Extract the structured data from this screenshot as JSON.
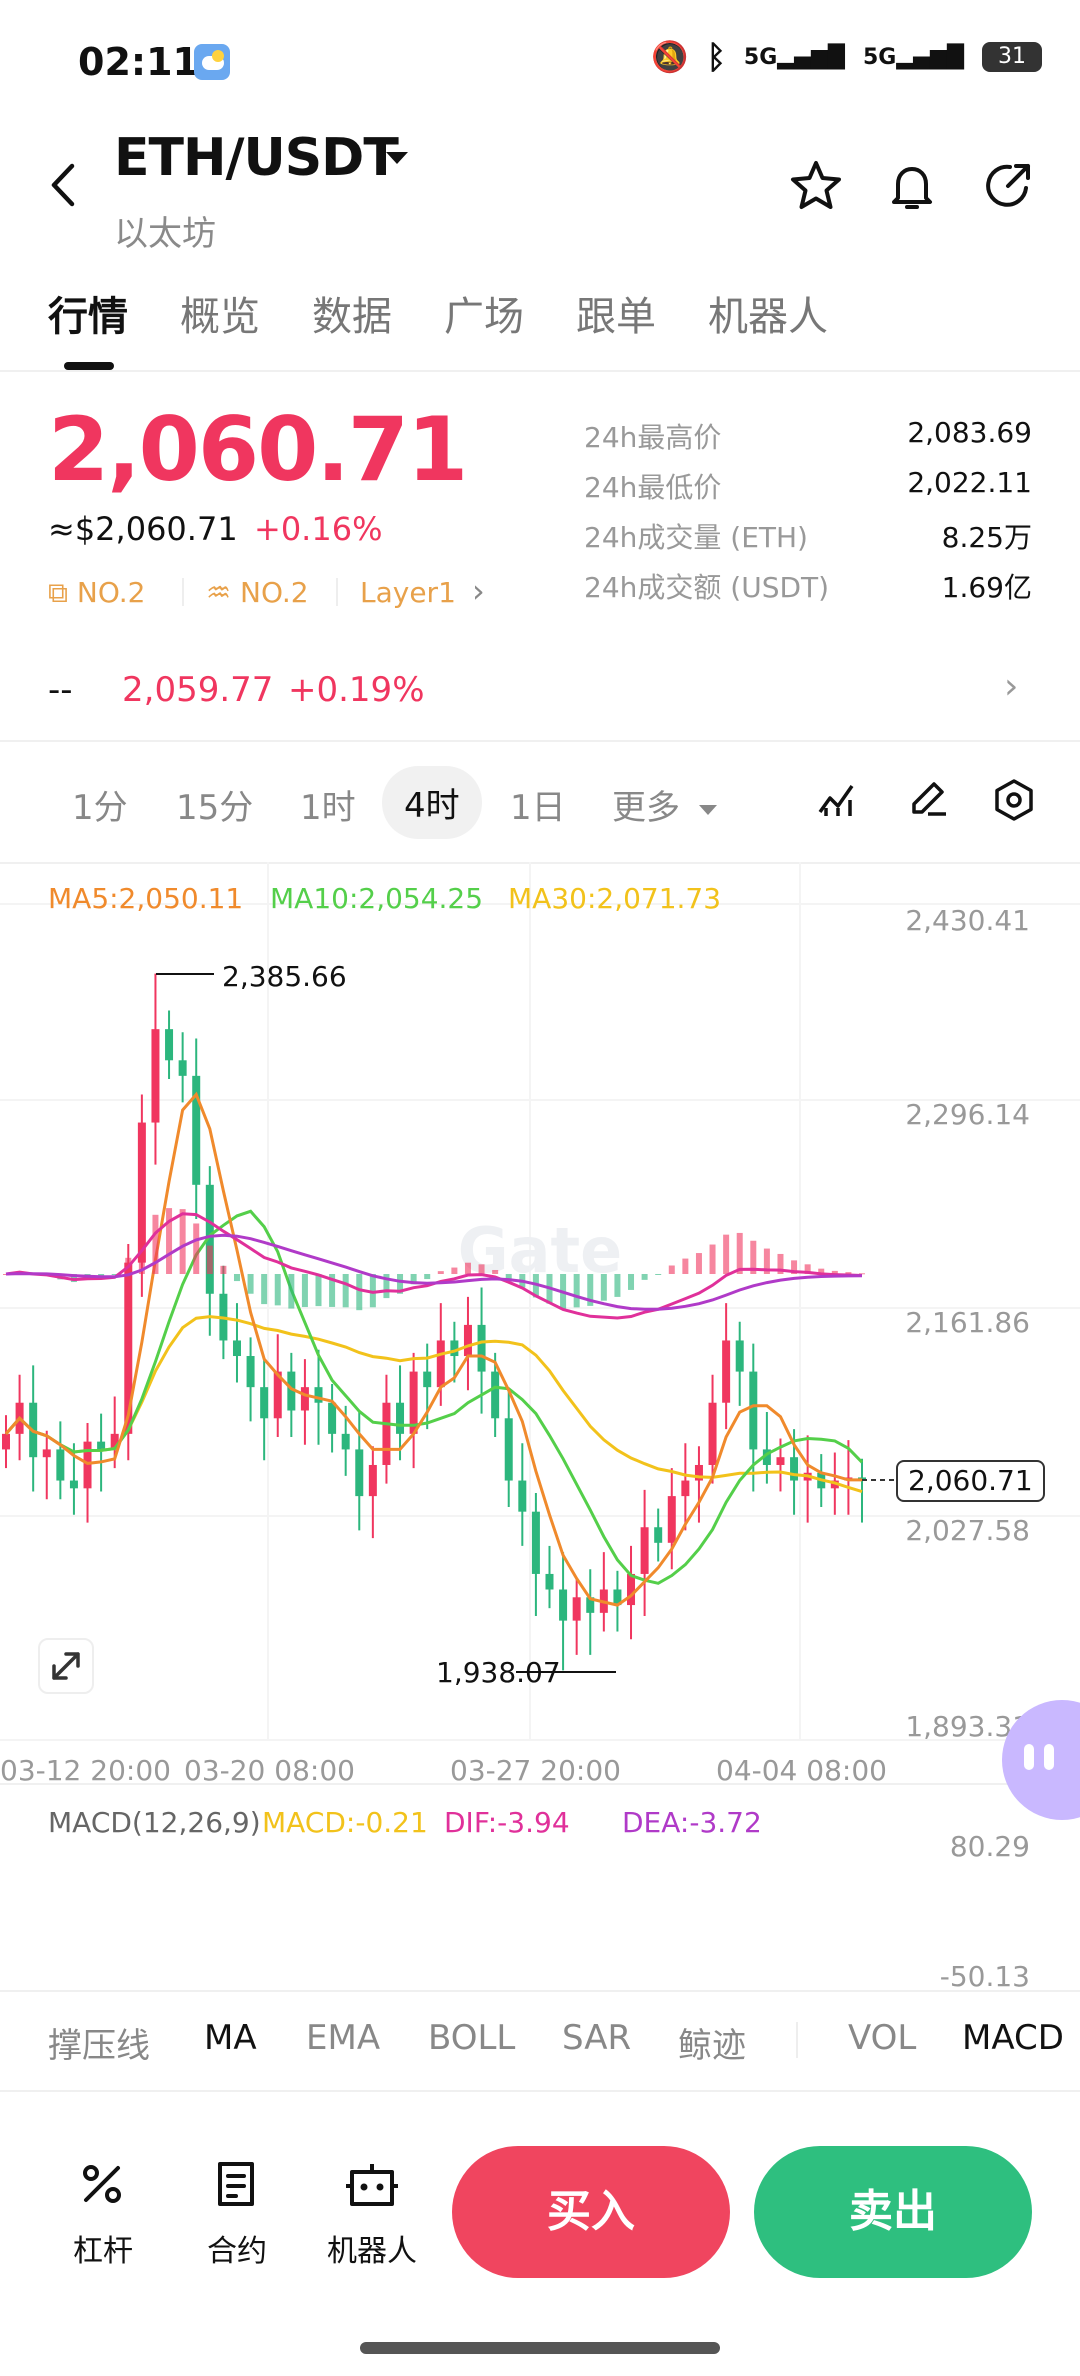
{
  "status_bar": {
    "time": "02:11",
    "battery": "31"
  },
  "header": {
    "pair": "ETH/USDT",
    "subtitle": "以太坊"
  },
  "tabs": [
    "行情",
    "概览",
    "数据",
    "广场",
    "跟单",
    "机器人"
  ],
  "price": {
    "last": "2,060.71",
    "approx": "≈$2,060.71",
    "change": "+0.16%"
  },
  "ranks": [
    "NO.2",
    "NO.2",
    "Layer1"
  ],
  "stats": [
    {
      "label": "24h最高价",
      "value": "2,083.69"
    },
    {
      "label": "24h最低价",
      "value": "2,022.11"
    },
    {
      "label": "24h成交量 (ETH)",
      "value": "8.25万"
    },
    {
      "label": "24h成交额 (USDT)",
      "value": "1.69亿"
    }
  ],
  "alt_price": {
    "dash": "--",
    "price": "2,059.77",
    "change": "+0.19%"
  },
  "timeframes": [
    "1分",
    "15分",
    "1时",
    "4时",
    "1日",
    "更多"
  ],
  "ma_legend": {
    "ma5": "MA5:2,050.11",
    "ma10": "MA10:2,054.25",
    "ma30": "MA30:2,071.73"
  },
  "y_axis": [
    "2,430.41",
    "2,296.14",
    "2,161.86",
    "2,027.58",
    "1,893.31"
  ],
  "x_axis": [
    "03-12 20:00",
    "03-20 08:00",
    "03-27 20:00",
    "04-04 08:00"
  ],
  "annotations": {
    "high": "2,385.66",
    "low": "1,938.07",
    "current": "2,060.71"
  },
  "watermark": "Gate",
  "macd_legend": {
    "title": "MACD(12,26,9)",
    "macd": "MACD:-0.21",
    "dif": "DIF:-3.94",
    "dea": "DEA:-3.72"
  },
  "macd_axis": [
    "80.29",
    "-50.13"
  ],
  "indicator_tabs": [
    "撑压线",
    "MA",
    "EMA",
    "BOLL",
    "SAR",
    "鲸迹",
    "VOL",
    "MACD"
  ],
  "bottom_bar": {
    "leverage": "杠杆",
    "contract": "合约",
    "robot": "机器人",
    "buy": "买入",
    "sell": "卖出"
  },
  "colors": {
    "up": "#f0365f",
    "down": "#2cb67d",
    "ma5": "#f08a2c",
    "ma10": "#54cf4a",
    "ma30": "#f2c21b",
    "dif": "#e0309a",
    "dea": "#b03ac8"
  },
  "chart_data": {
    "type": "candlestick",
    "y_range": [
      1893.31,
      2430.41
    ],
    "high": 2385.66,
    "low": 1938.07,
    "close": [
      2090,
      2110,
      2075,
      2080,
      2060,
      2055,
      2085,
      2080,
      2090,
      2200,
      2290,
      2350,
      2330,
      2320,
      2250,
      2180,
      2150,
      2140,
      2120,
      2100,
      2130,
      2105,
      2120,
      2110,
      2090,
      2080,
      2050,
      2070,
      2110,
      2090,
      2130,
      2120,
      2150,
      2140,
      2160,
      2130,
      2100,
      2060,
      2040,
      2000,
      1990,
      1970,
      1985,
      1975,
      1990,
      1980,
      2000,
      2030,
      2020,
      2050,
      2060,
      2070,
      2110,
      2150,
      2130,
      2080,
      2070,
      2075,
      2060,
      2065,
      2055,
      2060,
      2062,
      2060
    ]
  }
}
